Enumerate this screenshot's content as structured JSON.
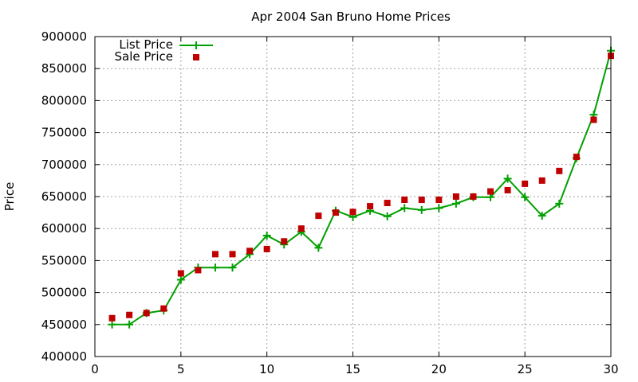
{
  "chart_data": {
    "type": "line",
    "title": "Apr 2004 San Bruno Home Prices",
    "xlabel": "",
    "ylabel": "Price",
    "xlim": [
      0,
      30
    ],
    "ylim": [
      400000,
      900000
    ],
    "xticks": [
      0,
      5,
      10,
      15,
      20,
      25,
      30
    ],
    "yticks": [
      400000,
      450000,
      500000,
      550000,
      600000,
      650000,
      700000,
      750000,
      800000,
      850000,
      900000
    ],
    "grid": true,
    "legend_position": "top-left",
    "x": [
      1,
      2,
      3,
      4,
      5,
      6,
      7,
      8,
      9,
      10,
      11,
      12,
      13,
      14,
      15,
      16,
      17,
      18,
      19,
      20,
      21,
      22,
      23,
      24,
      25,
      26,
      27,
      28,
      29,
      30
    ],
    "series": [
      {
        "name": "List Price",
        "style": "line-plus",
        "color": "#00a000",
        "values": [
          450000,
          450000,
          468000,
          472000,
          520000,
          539000,
          539000,
          539000,
          560000,
          589000,
          575000,
          595000,
          570000,
          628000,
          618000,
          628000,
          619000,
          632000,
          629000,
          632000,
          639000,
          649000,
          649000,
          678000,
          649000,
          620000,
          639000,
          710000,
          778000,
          878000
        ]
      },
      {
        "name": "Sale Price",
        "style": "square-points",
        "color": "#c00000",
        "values": [
          460000,
          465000,
          468000,
          475000,
          530000,
          535000,
          560000,
          560000,
          565000,
          568000,
          580000,
          600000,
          620000,
          625000,
          626000,
          635000,
          640000,
          645000,
          645000,
          645000,
          650000,
          650000,
          658000,
          660000,
          670000,
          675000,
          690000,
          712000,
          770000,
          870000
        ]
      }
    ]
  }
}
